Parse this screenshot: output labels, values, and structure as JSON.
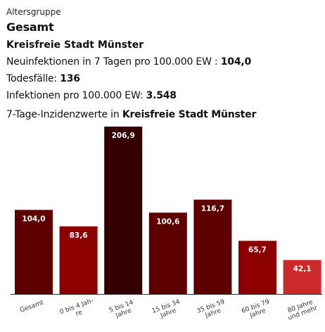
{
  "header": {
    "group_label": "Altersgruppe",
    "group_value": "Gesamt",
    "district": "Kreisfreie Stadt Münster",
    "incidence_label": "Neuinfektionen in 7 Tagen pro 100.000 EW :",
    "incidence_value": "104,0",
    "deaths_label": "Todesfälle:",
    "deaths_value": "136",
    "infections_label": "Infektionen pro 100.000 EW:",
    "infections_value": "3.548"
  },
  "chart_data": {
    "type": "bar",
    "title": "7-Tage-Inzidenzwerte in Kreisfreie Stadt Münster",
    "title_prefix": "7-Tage-Inzidenzwerte in",
    "title_place": "Kreisfreie Stadt Münster",
    "xlabel": "",
    "ylabel": "",
    "grid": false,
    "ylim": [
      0,
      206.9
    ],
    "categories": [
      "Gesamt",
      "0 bis 4 Jahre",
      "5 bis 14 Jahre",
      "15 bis 34 Jahre",
      "35 bis 59 Jahre",
      "60 bis 79 Jahre",
      "80 Jahre und mehr"
    ],
    "category_label_lines": [
      [
        "Gesamt"
      ],
      [
        "0 bis 4 Jah-",
        "re"
      ],
      [
        "5 bis 14",
        "Jahre"
      ],
      [
        "15 bis 34",
        "Jahre"
      ],
      [
        "35 bis 59",
        "Jahre"
      ],
      [
        "60 bis 79",
        "Jahre"
      ],
      [
        "80 Jahre",
        "und mehr"
      ]
    ],
    "values": [
      104.0,
      83.6,
      206.9,
      100.6,
      116.7,
      65.7,
      42.1
    ],
    "value_labels": [
      "104,0",
      "83,6",
      "206,9",
      "100,6",
      "116,7",
      "65,7",
      "42,1"
    ],
    "colors": [
      "#5c0000",
      "#8c0000",
      "#330000",
      "#5c0000",
      "#5c0000",
      "#8c0000",
      "#cc2a2a"
    ]
  }
}
